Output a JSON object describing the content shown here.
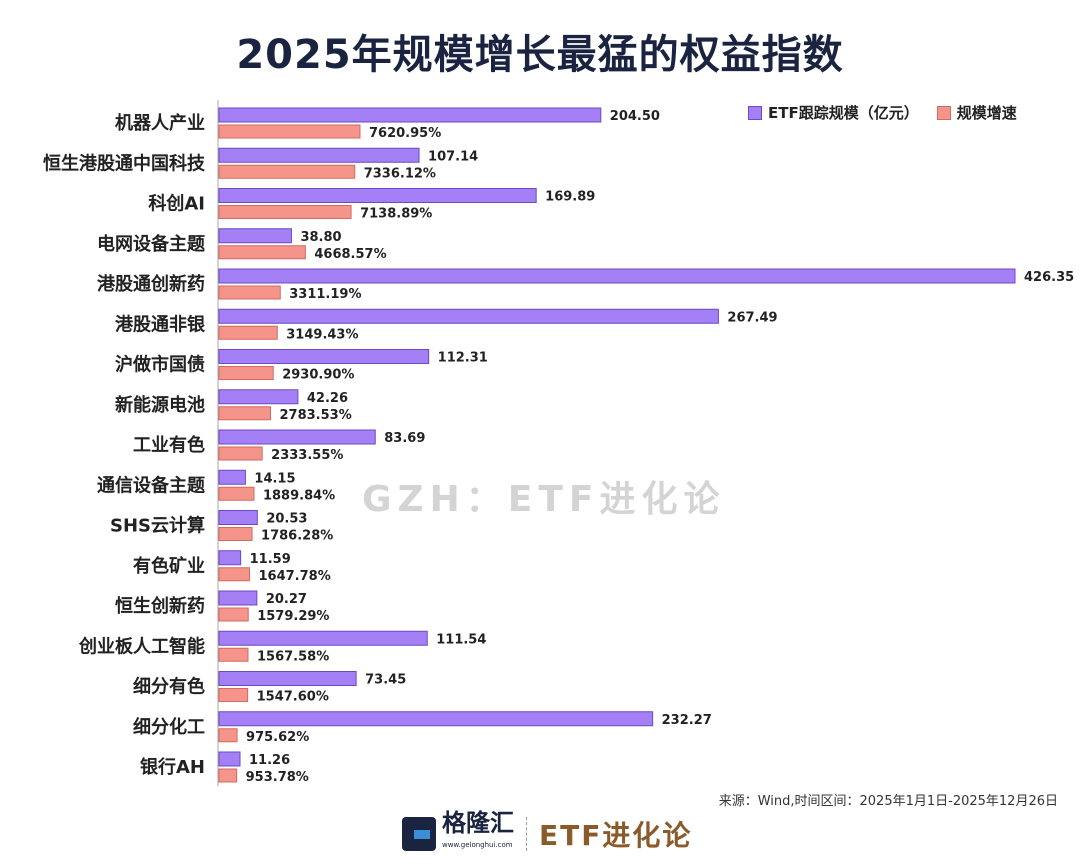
{
  "chart_data": {
    "type": "bar",
    "orientation": "horizontal",
    "title": "2025年规模增长最猛的权益指数",
    "categories": [
      "机器人产业",
      "恒生港股通中国科技",
      "科创AI",
      "电网设备主题",
      "港股通创新药",
      "港股通非银",
      "沪做市国债",
      "新能源电池",
      "工业有色",
      "通信设备主题",
      "SHS云计算",
      "有色矿业",
      "恒生创新药",
      "创业板人工智能",
      "细分有色",
      "细分化工",
      "银行AH"
    ],
    "series": [
      {
        "name": "ETF跟踪规模（亿元）",
        "color": "#a57ff5",
        "values": [
          204.5,
          107.14,
          169.89,
          38.8,
          426.35,
          267.49,
          112.31,
          42.26,
          83.69,
          14.15,
          20.53,
          11.59,
          20.27,
          111.54,
          73.45,
          232.27,
          11.26
        ],
        "labels": [
          "204.50",
          "107.14",
          "169.89",
          "38.80",
          "426.35",
          "267.49",
          "112.31",
          "42.26",
          "83.69",
          "14.15",
          "20.53",
          "11.59",
          "20.27",
          "111.54",
          "73.45",
          "232.27",
          "11.26"
        ]
      },
      {
        "name": "规模增速",
        "color": "#f4948a",
        "values": [
          7620.95,
          7336.12,
          7138.89,
          4668.57,
          3311.19,
          3149.43,
          2930.9,
          2783.53,
          2333.55,
          1889.84,
          1786.28,
          1647.78,
          1579.29,
          1567.58,
          1547.6,
          975.62,
          953.78
        ],
        "labels": [
          "7620.95%",
          "7336.12%",
          "7138.89%",
          "4668.57%",
          "3311.19%",
          "3149.43%",
          "2930.90%",
          "2783.53%",
          "2333.55%",
          "1889.84%",
          "1786.28%",
          "1647.78%",
          "1579.29%",
          "1567.58%",
          "1547.60%",
          "975.62%",
          "953.78%"
        ]
      }
    ],
    "legend_position": "top-right",
    "grid": false
  },
  "watermark": "GZH：ETF进化论",
  "source": "来源：Wind,时间区间：2025年1月1日-2025年12月26日",
  "footer": {
    "logo_name": "格隆汇",
    "logo_url": "www.gelonghui.com",
    "brand": "ETF进化论"
  }
}
